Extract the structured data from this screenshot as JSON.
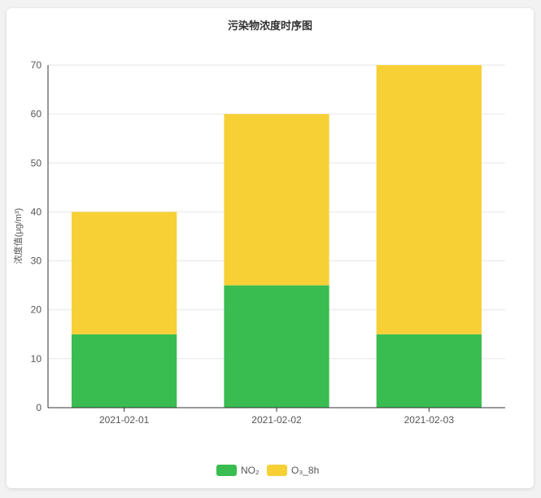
{
  "chart_data": {
    "type": "bar",
    "stacked": true,
    "title": "污染物浓度时序图",
    "ylabel": "浓度值(μg/m³)",
    "xlabel": "",
    "categories": [
      "2021-02-01",
      "2021-02-02",
      "2021-02-03"
    ],
    "series": [
      {
        "name": "NO₂",
        "color": "#39bc50",
        "values": [
          15,
          25,
          15
        ]
      },
      {
        "name": "O₃_8h",
        "color": "#f7d036",
        "values": [
          25,
          35,
          55
        ]
      }
    ],
    "ylim": [
      0,
      70
    ],
    "yticks": [
      0,
      10,
      20,
      30,
      40,
      50,
      60,
      70
    ],
    "grid": true,
    "legend": "bottom-center"
  }
}
